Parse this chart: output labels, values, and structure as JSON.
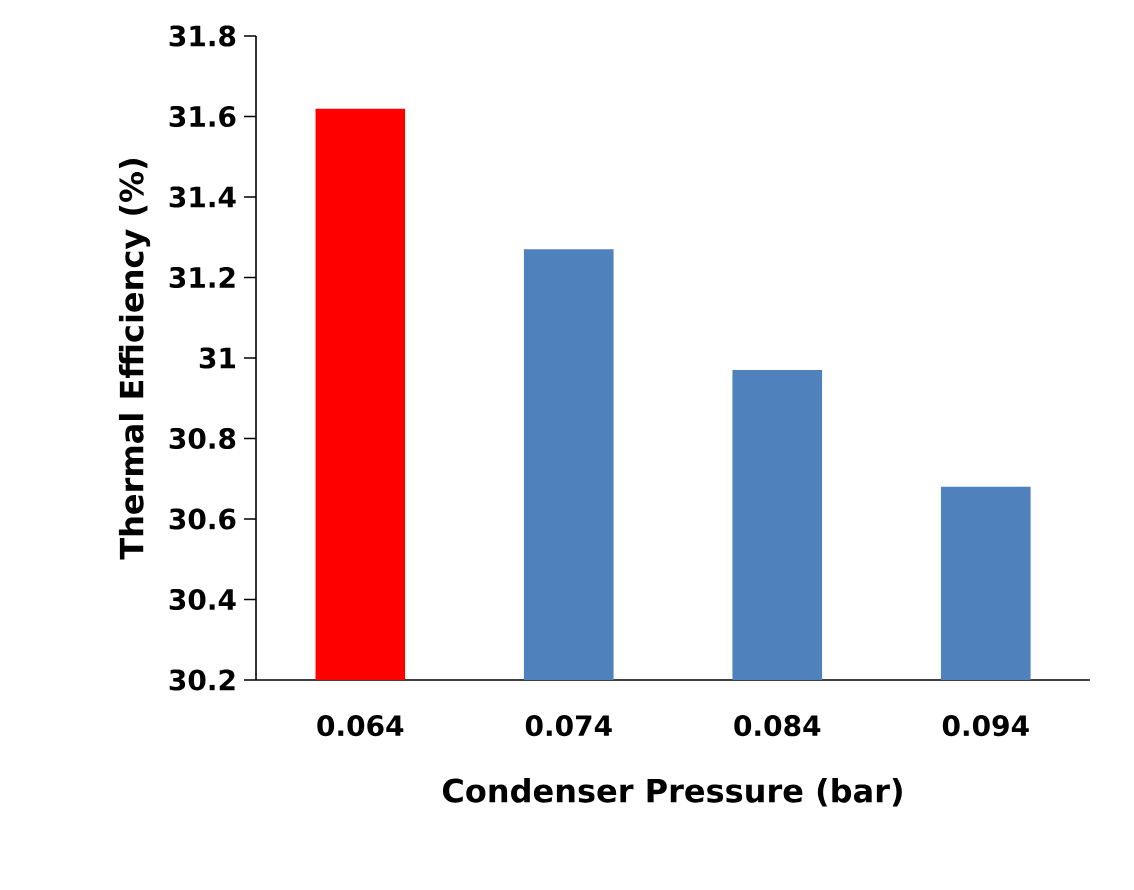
{
  "chart_data": {
    "type": "bar",
    "xlabel": "Condenser Pressure (bar)",
    "ylabel": "Thermal  Efficiency  (%)",
    "categories": [
      "0.064",
      "0.074",
      "0.084",
      "0.094"
    ],
    "values": [
      31.62,
      31.27,
      30.97,
      30.68
    ],
    "colors": [
      "#ff0000",
      "#4f81bd",
      "#4f81bd",
      "#4f81bd"
    ],
    "ylim": [
      30.2,
      31.8
    ],
    "yticks": [
      {
        "value": 30.2,
        "label": "30.2"
      },
      {
        "value": 30.4,
        "label": "30.4"
      },
      {
        "value": 30.6,
        "label": "30.6"
      },
      {
        "value": 30.8,
        "label": "30.8"
      },
      {
        "value": 31,
        "label": "31"
      },
      {
        "value": 31.2,
        "label": "31.2"
      },
      {
        "value": 31.4,
        "label": "31.4"
      },
      {
        "value": 31.6,
        "label": "31.6"
      },
      {
        "value": 31.8,
        "label": "31.8"
      }
    ],
    "grid": false
  }
}
